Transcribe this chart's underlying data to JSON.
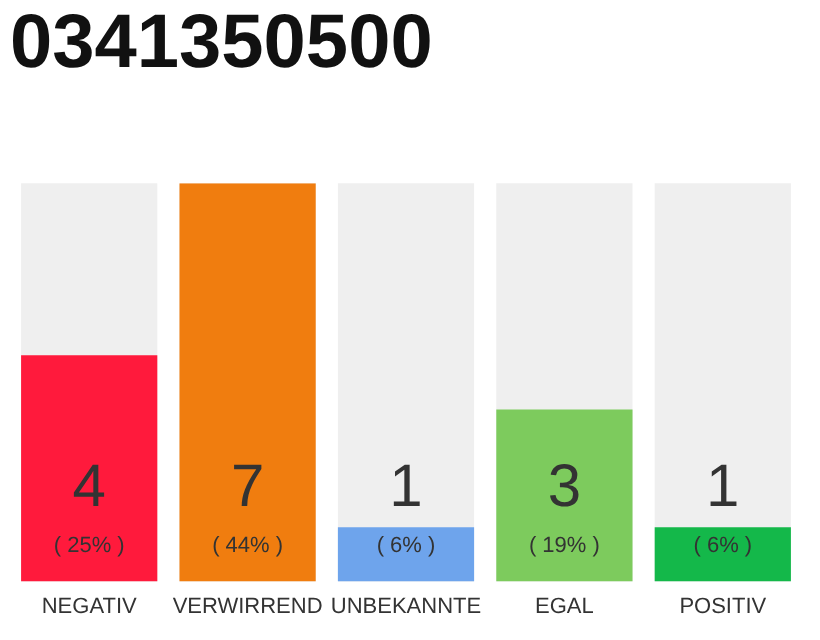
{
  "chart_data": {
    "type": "bar",
    "title": "0341350500",
    "categories": [
      "NEGATIV",
      "VERWIRREND",
      "UNBEKANNTE",
      "EGAL",
      "POSITIV"
    ],
    "values": [
      25,
      44,
      6,
      19,
      6
    ],
    "colors": [
      "#ff1a3c",
      "#f07d0f",
      "#6ea4ec",
      "#7dcb5d",
      "#14b84a"
    ],
    "value_labels": [
      "( 25% )",
      "( 44% )",
      "( 6% )",
      "( 19% )",
      "( 6% )"
    ],
    "annotations": [
      "4",
      "7",
      "1",
      "3",
      "1"
    ],
    "grid": false,
    "legend": false
  }
}
